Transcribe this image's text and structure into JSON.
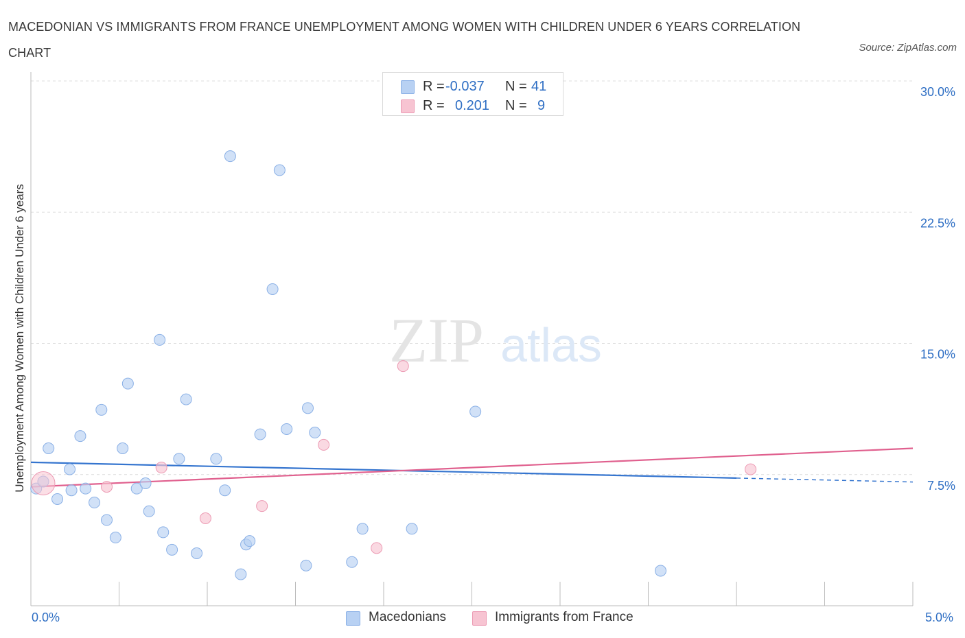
{
  "title": "MACEDONIAN VS IMMIGRANTS FROM FRANCE UNEMPLOYMENT AMONG WOMEN WITH CHILDREN UNDER 6 YEARS CORRELATION CHART",
  "source": "Source: ZipAtlas.com",
  "watermark": {
    "zip": "ZIP",
    "atlas": "atlas"
  },
  "stats": {
    "r_label": "R =",
    "n_label": "N =",
    "series1": {
      "r": "-0.037",
      "n": "41"
    },
    "series2": {
      "r": "0.201",
      "n": "9"
    }
  },
  "legend": {
    "series1": "Macedonians",
    "series2": "Immigrants from France"
  },
  "colors": {
    "blue_fill": "#b8d1f3",
    "blue_stroke": "#8ab0e6",
    "blue_line": "#3575cf",
    "pink_fill": "#f7c4d2",
    "pink_stroke": "#ec9ab3",
    "pink_line": "#e0608e",
    "tick_label": "#2f6fc4",
    "grid": "#dcdcdc"
  },
  "chart_data": {
    "type": "scatter",
    "xlabel": "",
    "ylabel": "Unemployment Among Women with Children Under 6 years",
    "xlim": [
      0,
      5
    ],
    "ylim": [
      0,
      30
    ],
    "x_tick_labels": [
      "0.0%",
      "5.0%"
    ],
    "y_ticks": [
      7.5,
      15.0,
      22.5,
      30.0
    ],
    "y_tick_labels": [
      "7.5%",
      "15.0%",
      "22.5%",
      "30.0%"
    ],
    "grid": true,
    "legend_position": "bottom-center",
    "series": [
      {
        "name": "Macedonians",
        "color": "#b8d1f3",
        "x": [
          0.03,
          0.07,
          0.1,
          0.15,
          0.22,
          0.23,
          0.28,
          0.31,
          0.36,
          0.4,
          0.43,
          0.48,
          0.52,
          0.55,
          0.6,
          0.65,
          0.67,
          0.73,
          0.75,
          0.8,
          0.84,
          0.88,
          0.94,
          1.05,
          1.1,
          1.13,
          1.19,
          1.22,
          1.24,
          1.3,
          1.37,
          1.41,
          1.45,
          1.56,
          1.57,
          1.61,
          1.82,
          1.88,
          2.16,
          2.52,
          3.57
        ],
        "y": [
          6.7,
          7.1,
          9.0,
          6.1,
          7.8,
          6.6,
          9.7,
          6.7,
          5.9,
          11.2,
          4.9,
          3.9,
          9.0,
          12.7,
          6.7,
          7.0,
          5.4,
          15.2,
          4.2,
          3.2,
          8.4,
          11.8,
          3.0,
          8.4,
          6.6,
          25.7,
          1.8,
          3.5,
          3.7,
          9.8,
          18.1,
          24.9,
          10.1,
          2.3,
          11.3,
          9.9,
          2.5,
          4.4,
          4.4,
          11.1,
          2.0
        ]
      },
      {
        "name": "Immigrants from France",
        "color": "#f7c4d2",
        "x": [
          0.07,
          0.43,
          0.74,
          0.99,
          1.31,
          1.66,
          1.96,
          2.11,
          4.08
        ],
        "y": [
          7.0,
          6.8,
          7.9,
          5.0,
          5.7,
          9.2,
          3.3,
          13.7,
          7.8
        ]
      }
    ],
    "trendlines": [
      {
        "series": "Macedonians",
        "x": [
          0,
          4.0
        ],
        "y": [
          8.2,
          7.3
        ],
        "dashed_extension_to": 5.0
      },
      {
        "series": "Immigrants from France",
        "x": [
          0,
          5.0
        ],
        "y": [
          6.8,
          9.0
        ]
      }
    ]
  }
}
